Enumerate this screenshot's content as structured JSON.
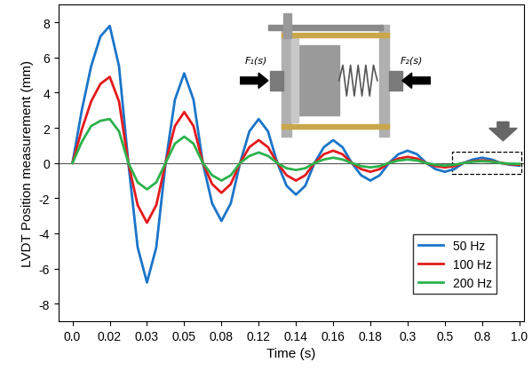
{
  "chart_data": {
    "type": "line",
    "x_label": "Time (s)",
    "y_label": "LVDT Position measurement (mm)",
    "categories": [
      "0.0",
      null,
      null,
      null,
      "0.02",
      null,
      null,
      null,
      "0.03",
      null,
      null,
      null,
      "0.05",
      null,
      null,
      null,
      "0.08",
      null,
      null,
      null,
      "0.12",
      null,
      null,
      null,
      "0.14",
      null,
      null,
      null,
      "0.16",
      null,
      null,
      null,
      "0.18",
      null,
      null,
      null,
      "0.3",
      null,
      null,
      null,
      "0.5",
      null,
      null,
      null,
      "0.8",
      null,
      null,
      null,
      "1.0"
    ],
    "series": [
      {
        "name": "50 Hz",
        "color": "#1a75c9",
        "values": [
          0,
          3.0,
          5.5,
          7.2,
          7.8,
          5.5,
          0,
          -4.8,
          -6.8,
          -4.8,
          0,
          3.6,
          5.1,
          3.6,
          0,
          -2.3,
          -3.3,
          -2.3,
          0,
          1.8,
          2.5,
          1.8,
          0,
          -1.3,
          -1.8,
          -1.3,
          0,
          0.9,
          1.3,
          0.9,
          0,
          -0.7,
          -1.0,
          -0.7,
          0,
          0.5,
          0.7,
          0.5,
          0,
          -0.35,
          -0.5,
          -0.35,
          0,
          0.2,
          0.3,
          0.2,
          0,
          -0.1,
          -0.15
        ]
      },
      {
        "name": "100 Hz",
        "color": "#e41a1c",
        "values": [
          0,
          1.9,
          3.5,
          4.5,
          4.9,
          3.5,
          0,
          -2.4,
          -3.4,
          -2.4,
          0,
          2.1,
          2.9,
          2.1,
          0,
          -1.2,
          -1.7,
          -1.2,
          0,
          0.9,
          1.3,
          0.9,
          0,
          -0.7,
          -1.0,
          -0.7,
          0,
          0.5,
          0.7,
          0.5,
          0,
          -0.35,
          -0.5,
          -0.35,
          0,
          0.25,
          0.35,
          0.25,
          0,
          -0.18,
          -0.25,
          -0.18,
          0,
          0.1,
          0.15,
          0.1,
          0,
          -0.07,
          -0.1
        ]
      },
      {
        "name": "200 Hz",
        "color": "#2bb24c",
        "values": [
          0,
          1.2,
          2.1,
          2.4,
          2.5,
          1.8,
          0,
          -1.1,
          -1.5,
          -1.1,
          0,
          1.1,
          1.5,
          1.1,
          0,
          -0.7,
          -1.0,
          -0.7,
          0,
          0.4,
          0.6,
          0.4,
          0,
          -0.3,
          -0.4,
          -0.3,
          0,
          0.2,
          0.3,
          0.2,
          0,
          -0.18,
          -0.25,
          -0.18,
          0,
          0.14,
          0.2,
          0.14,
          0,
          -0.1,
          -0.15,
          -0.1,
          0,
          0.07,
          0.1,
          0.07,
          0,
          -0.04,
          -0.05
        ]
      }
    ],
    "ylim": [
      -9,
      9
    ],
    "yticks": [
      -8,
      -6,
      -4,
      -2,
      0,
      2,
      4,
      6,
      8
    ],
    "legend": "lower right",
    "grid": false,
    "annotations": [
      "F₁(s)",
      "F₂(s)"
    ]
  }
}
